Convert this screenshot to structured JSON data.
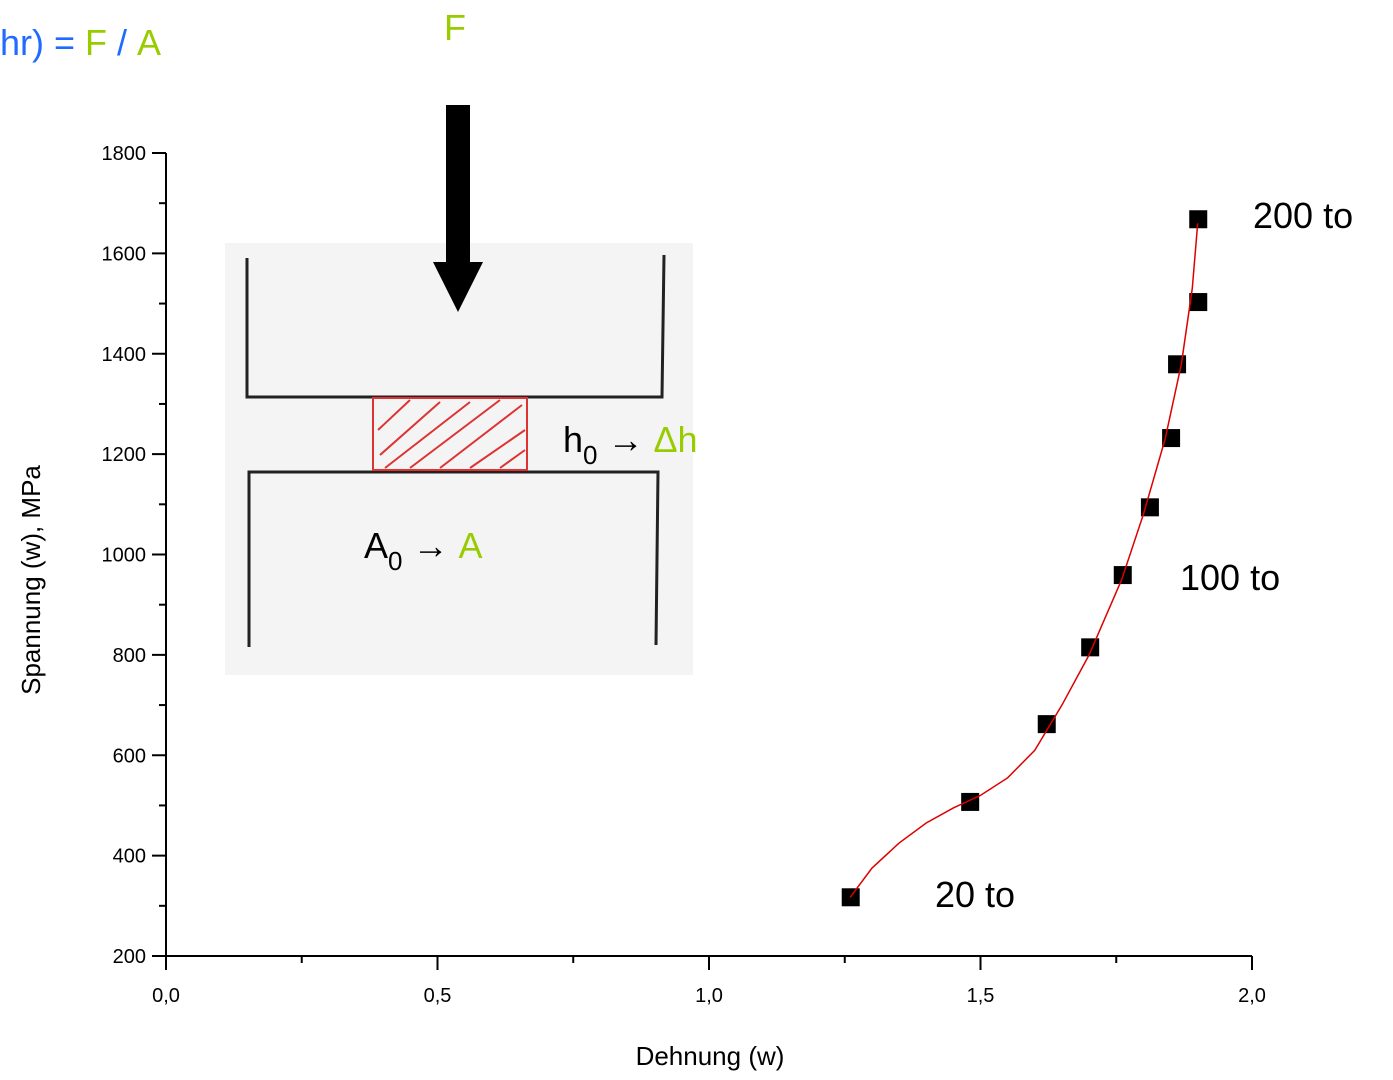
{
  "chart_data": {
    "type": "scatter",
    "x_label": "Dehnung (w)",
    "y_label": "Spannung (w), MPa",
    "xlim": [
      0,
      2
    ],
    "ylim": [
      200,
      1800
    ],
    "xticks": [
      {
        "value": 0,
        "label": "0,0"
      },
      {
        "value": 0.5,
        "label": "0,5"
      },
      {
        "value": 1,
        "label": "1,0"
      },
      {
        "value": 1.5,
        "label": "1,5"
      },
      {
        "value": 2,
        "label": "2,0"
      }
    ],
    "yticks": [
      200,
      400,
      600,
      800,
      1000,
      1200,
      1400,
      1600,
      1800
    ],
    "series": [
      {
        "color": "#000000",
        "marker": "square",
        "x": [
          1.261,
          1.481,
          1.622,
          1.702,
          1.762,
          1.812,
          1.851,
          1.862,
          1.901,
          1.901
        ],
        "values": [
          317,
          507,
          662,
          815,
          959,
          1094,
          1232,
          1379,
          1503,
          1668
        ]
      },
      {
        "color": "#dd0000",
        "marker": "line",
        "x": [
          1.26,
          1.3,
          1.35,
          1.4,
          1.45,
          1.5,
          1.55,
          1.6,
          1.65,
          1.7,
          1.76,
          1.8,
          1.84,
          1.87,
          1.89,
          1.9
        ],
        "values": [
          317,
          375,
          425,
          465,
          495,
          520,
          555,
          610,
          700,
          800,
          950,
          1080,
          1230,
          1380,
          1530,
          1660
        ]
      }
    ]
  },
  "annotations": {
    "force": "F",
    "formula": {
      "left": "hr) =",
      "force": "F",
      "slash": "/",
      "area": "A"
    },
    "height": {
      "base": "h",
      "sub": "0",
      "arrow": "→",
      "new": "Δh"
    },
    "area": {
      "base": "A",
      "sub": "0",
      "arrow": "→",
      "new": "A"
    },
    "point_labels": [
      "20 to",
      "100 to",
      "200 to"
    ]
  }
}
